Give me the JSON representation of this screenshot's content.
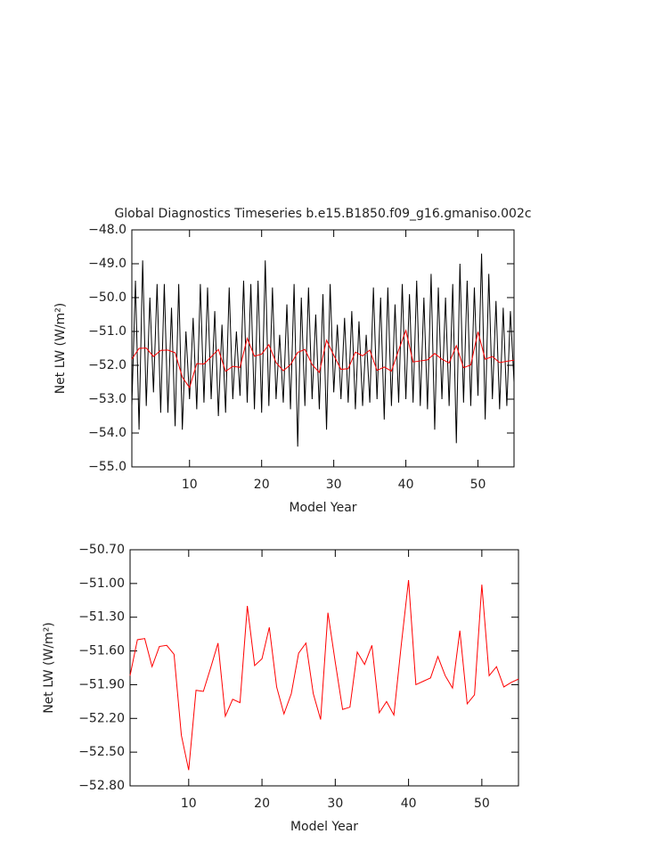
{
  "chart_data": [
    {
      "type": "line",
      "title": "Global Diagnostics Timeseries b.e15.B1850.f09_g16.gmaniso.002c",
      "xlabel": "Model Year",
      "ylabel": "Net LW (W/m²)",
      "xlim": [
        2,
        55
      ],
      "xticks": [
        10,
        20,
        30,
        40,
        50
      ],
      "ylim": [
        -55,
        -48
      ],
      "yticks": [
        {
          "value": -55,
          "label": "−55.0"
        },
        {
          "value": -54,
          "label": "−54.0"
        },
        {
          "value": -53,
          "label": "−53.0"
        },
        {
          "value": -52,
          "label": "−52.0"
        },
        {
          "value": -51,
          "label": "−51.0"
        },
        {
          "value": -50,
          "label": "−50.0"
        },
        {
          "value": -49,
          "label": "−49.0"
        },
        {
          "value": -48,
          "label": "−48.0"
        }
      ],
      "series": [
        {
          "color": "#000000",
          "x": [
            2,
            2.5,
            3,
            3.5,
            4,
            4.5,
            5,
            5.5,
            6,
            6.5,
            7,
            7.5,
            8,
            8.5,
            9,
            9.5,
            10,
            10.5,
            11,
            11.5,
            12,
            12.5,
            13,
            13.5,
            14,
            14.5,
            15,
            15.5,
            16,
            16.5,
            17,
            17.5,
            18,
            18.5,
            19,
            19.5,
            20,
            20.5,
            21,
            21.5,
            22,
            22.5,
            23,
            23.5,
            24,
            24.5,
            25,
            25.5,
            26,
            26.5,
            27,
            27.5,
            28,
            28.5,
            29,
            29.5,
            30,
            30.5,
            31,
            31.5,
            32,
            32.5,
            33,
            33.5,
            34,
            34.5,
            35,
            35.5,
            36,
            36.5,
            37,
            37.5,
            38,
            38.5,
            39,
            39.5,
            40,
            40.5,
            41,
            41.5,
            42,
            42.5,
            43,
            43.5,
            44,
            44.5,
            45,
            45.5,
            46,
            46.5,
            47,
            47.5,
            48,
            48.5,
            49,
            49.5,
            50,
            50.5,
            51,
            51.5,
            52,
            52.5,
            53,
            53.5,
            54,
            54.5,
            55
          ],
          "values": [
            -53.2,
            -49.5,
            -53.9,
            -48.9,
            -53.2,
            -50.0,
            -52.8,
            -49.6,
            -53.4,
            -49.6,
            -53.4,
            -50.3,
            -53.8,
            -49.6,
            -53.9,
            -51.0,
            -53.0,
            -50.6,
            -53.3,
            -49.6,
            -53.1,
            -49.7,
            -53.0,
            -50.4,
            -53.5,
            -50.8,
            -53.4,
            -49.7,
            -53.0,
            -51.0,
            -52.9,
            -49.5,
            -53.1,
            -49.6,
            -53.3,
            -49.5,
            -53.4,
            -48.9,
            -53.2,
            -49.7,
            -53.0,
            -51.1,
            -53.1,
            -50.2,
            -53.3,
            -49.6,
            -54.4,
            -50.0,
            -53.2,
            -49.7,
            -53.0,
            -50.5,
            -53.3,
            -49.9,
            -53.9,
            -49.6,
            -52.8,
            -50.8,
            -53.0,
            -50.6,
            -53.1,
            -50.4,
            -53.3,
            -50.7,
            -53.2,
            -51.1,
            -53.1,
            -49.7,
            -53.0,
            -50.0,
            -53.6,
            -49.7,
            -53.2,
            -50.2,
            -53.1,
            -49.6,
            -53.0,
            -49.9,
            -53.1,
            -49.5,
            -53.2,
            -50.0,
            -53.3,
            -49.3,
            -53.9,
            -49.7,
            -53.0,
            -50.0,
            -53.2,
            -49.6,
            -54.3,
            -49.0,
            -53.1,
            -49.5,
            -53.2,
            -49.7,
            -52.9,
            -48.7,
            -53.6,
            -49.3,
            -53.0,
            -50.1,
            -53.3,
            -50.3,
            -53.2,
            -50.4,
            -52.5
          ]
        },
        {
          "color": "#ff0000",
          "x": [
            2,
            3,
            4,
            5,
            6,
            7,
            8,
            9,
            10,
            11,
            12,
            13,
            14,
            15,
            16,
            17,
            18,
            19,
            20,
            21,
            22,
            23,
            24,
            25,
            26,
            27,
            28,
            29,
            30,
            31,
            32,
            33,
            34,
            35,
            36,
            37,
            38,
            39,
            40,
            41,
            42,
            43,
            44,
            45,
            46,
            47,
            48,
            49,
            50,
            51,
            52,
            53,
            54,
            55
          ],
          "values": [
            -51.82,
            -51.5,
            -51.49,
            -51.74,
            -51.56,
            -51.55,
            -51.63,
            -52.35,
            -52.66,
            -51.95,
            -51.96,
            -51.75,
            -51.53,
            -52.18,
            -52.03,
            -52.06,
            -51.2,
            -51.73,
            -51.67,
            -51.39,
            -51.92,
            -52.16,
            -51.98,
            -51.62,
            -51.53,
            -51.98,
            -52.21,
            -51.26,
            -51.7,
            -52.12,
            -52.1,
            -51.61,
            -51.72,
            -51.55,
            -52.15,
            -52.05,
            -52.17,
            -51.55,
            -50.97,
            -51.9,
            -51.87,
            -51.84,
            -51.65,
            -51.82,
            -51.93,
            -51.42,
            -52.07,
            -51.99,
            -51.01,
            -51.82,
            -51.74,
            -51.92,
            -51.88,
            -51.85
          ]
        }
      ]
    },
    {
      "type": "line",
      "xlabel": "Model Year",
      "ylabel": "Net LW (W/m²)",
      "xlim": [
        2,
        55
      ],
      "xticks": [
        10,
        20,
        30,
        40,
        50
      ],
      "ylim": [
        -52.8,
        -50.7
      ],
      "yticks": [
        {
          "value": -52.8,
          "label": "−52.80"
        },
        {
          "value": -52.5,
          "label": "−52.50"
        },
        {
          "value": -52.2,
          "label": "−52.20"
        },
        {
          "value": -51.9,
          "label": "−51.90"
        },
        {
          "value": -51.6,
          "label": "−51.60"
        },
        {
          "value": -51.3,
          "label": "−51.30"
        },
        {
          "value": -51.0,
          "label": "−51.00"
        },
        {
          "value": -50.7,
          "label": "−50.70"
        }
      ],
      "series": [
        {
          "color": "#ff0000",
          "x": [
            2,
            3,
            4,
            5,
            6,
            7,
            8,
            9,
            10,
            11,
            12,
            13,
            14,
            15,
            16,
            17,
            18,
            19,
            20,
            21,
            22,
            23,
            24,
            25,
            26,
            27,
            28,
            29,
            30,
            31,
            32,
            33,
            34,
            35,
            36,
            37,
            38,
            39,
            40,
            41,
            42,
            43,
            44,
            45,
            46,
            47,
            48,
            49,
            50,
            51,
            52,
            53,
            54,
            55
          ],
          "values": [
            -51.82,
            -51.5,
            -51.49,
            -51.74,
            -51.56,
            -51.55,
            -51.63,
            -52.35,
            -52.66,
            -51.95,
            -51.96,
            -51.75,
            -51.53,
            -52.18,
            -52.03,
            -52.06,
            -51.2,
            -51.73,
            -51.67,
            -51.39,
            -51.92,
            -52.16,
            -51.98,
            -51.62,
            -51.53,
            -51.98,
            -52.21,
            -51.26,
            -51.7,
            -52.12,
            -52.1,
            -51.61,
            -51.72,
            -51.55,
            -52.15,
            -52.05,
            -52.17,
            -51.55,
            -50.97,
            -51.9,
            -51.87,
            -51.84,
            -51.65,
            -51.82,
            -51.93,
            -51.42,
            -52.07,
            -51.99,
            -51.01,
            -51.82,
            -51.74,
            -51.92,
            -51.88,
            -51.85
          ]
        }
      ]
    }
  ]
}
